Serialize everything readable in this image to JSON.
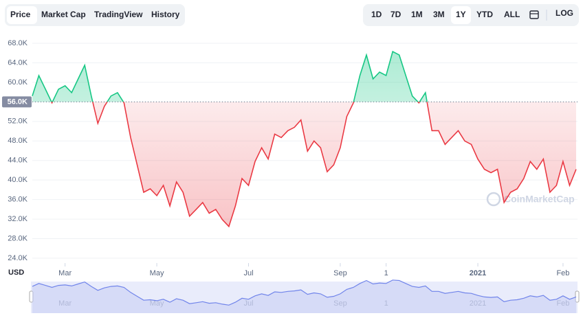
{
  "tabs": [
    "Price",
    "Market Cap",
    "TradingView",
    "History"
  ],
  "ranges": [
    "1D",
    "7D",
    "1M",
    "3M",
    "1Y",
    "YTD",
    "ALL"
  ],
  "log_button": "LOG",
  "currency": "USD",
  "watermark": "CoinMarketCap",
  "chart_data": {
    "type": "line",
    "values": [
      57200,
      61400,
      58600,
      55800,
      58600,
      59300,
      57900,
      60700,
      63500,
      57200,
      51600,
      55100,
      57200,
      57900,
      55800,
      48700,
      43100,
      37500,
      38200,
      36800,
      38900,
      34700,
      39600,
      37500,
      32600,
      34000,
      35400,
      33200,
      34000,
      31900,
      30500,
      34700,
      40300,
      38900,
      43800,
      46600,
      44300,
      49400,
      48700,
      50100,
      50800,
      52300,
      45900,
      48000,
      46600,
      41700,
      43100,
      46600,
      53000,
      55800,
      61400,
      65600,
      60700,
      62100,
      61400,
      66300,
      65600,
      61400,
      57200,
      55800,
      57900,
      50100,
      50100,
      47300,
      48700,
      50100,
      48000,
      47300,
      44300,
      42200,
      41500,
      42200,
      35400,
      37500,
      38200,
      40300,
      43800,
      42200,
      44300,
      37500,
      38900,
      43800,
      38900,
      42200
    ],
    "xlim": [
      0,
      83
    ],
    "xticks": [
      {
        "value": 5,
        "label": "Mar"
      },
      {
        "value": 19,
        "label": "May"
      },
      {
        "value": 33,
        "label": "Jul"
      },
      {
        "value": 47,
        "label": "Sep"
      },
      {
        "value": 54,
        "label": "1"
      },
      {
        "value": 68,
        "label": "2021"
      },
      {
        "value": 81,
        "label": "Feb"
      }
    ],
    "ylim": [
      23000,
      70000
    ],
    "yticks": [
      {
        "value": 24000,
        "label": "24.0K"
      },
      {
        "value": 28000,
        "label": "28.0K"
      },
      {
        "value": 32000,
        "label": "32.0K"
      },
      {
        "value": 36000,
        "label": "36.0K"
      },
      {
        "value": 40000,
        "label": "40.0K"
      },
      {
        "value": 44000,
        "label": "44.0K"
      },
      {
        "value": 48000,
        "label": "48.0K"
      },
      {
        "value": 52000,
        "label": "52.0K"
      },
      {
        "value": 56000,
        "label": "56.0K"
      },
      {
        "value": 60000,
        "label": "60.0K"
      },
      {
        "value": 64000,
        "label": "64.0K"
      },
      {
        "value": 68000,
        "label": "68.0K"
      }
    ],
    "baseline": {
      "value": 56000,
      "label": "56.0K"
    },
    "up_color": "#16c784",
    "down_color": "#ea3943",
    "grid": true
  }
}
